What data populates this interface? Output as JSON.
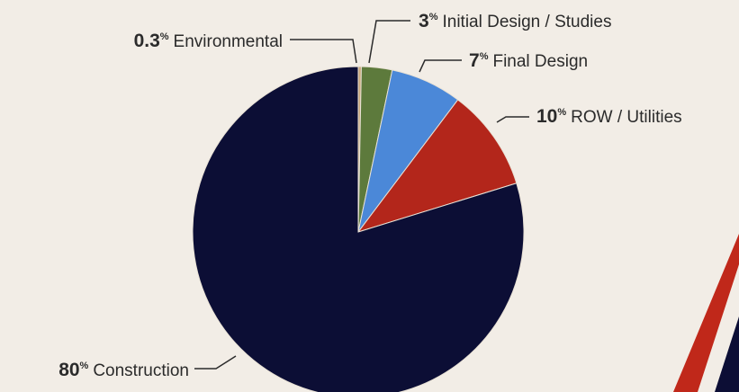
{
  "chart_data": {
    "type": "pie",
    "title": "",
    "slices": [
      {
        "label": "Environmental",
        "value": 0.3,
        "value_text": "0.3",
        "unit": "%",
        "color": "#c9a77a"
      },
      {
        "label": "Initial Design / Studies",
        "value": 3,
        "value_text": "3",
        "unit": "%",
        "color": "#5d7a3c"
      },
      {
        "label": "Final Design",
        "value": 7,
        "value_text": "7",
        "unit": "%",
        "color": "#4b88d8"
      },
      {
        "label": "ROW / Utilities",
        "value": 10,
        "value_text": "10",
        "unit": "%",
        "color": "#b3261b"
      },
      {
        "label": "Construction",
        "value": 80,
        "value_text": "80",
        "unit": "%",
        "color": "#0c0e35"
      }
    ],
    "start_angle_deg": 0,
    "direction": "clockwise",
    "legend": "none",
    "data_labels": "outside-with-leader-lines"
  },
  "decoration": {
    "stripe_red": "#c0281a",
    "stripe_navy": "#0c0e35",
    "background": "#f2ede6"
  }
}
